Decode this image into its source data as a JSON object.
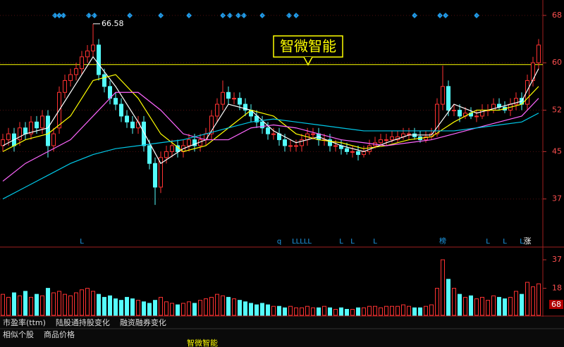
{
  "chart_data": {
    "type": "candlestick",
    "title": "智微智能",
    "max_label": "66.58",
    "up_color": "#ff3232",
    "down_color": "#54fcfc",
    "open": [
      46,
      47,
      48,
      47,
      49,
      48,
      50,
      49,
      51,
      46,
      49,
      55,
      57,
      58,
      59,
      61,
      62,
      63,
      58,
      56,
      54,
      53,
      51,
      50,
      49,
      50,
      46,
      43,
      39,
      44,
      45,
      46,
      45,
      46,
      47,
      46,
      47,
      48,
      51,
      53,
      55,
      54,
      54,
      53,
      52,
      51,
      50,
      49,
      48,
      48,
      47,
      46,
      46,
      46,
      47,
      48,
      48,
      47,
      47,
      46,
      46,
      45.5,
      45,
      45,
      44.5,
      45,
      46,
      46.5,
      47,
      47,
      47,
      47.5,
      48,
      48,
      47.5,
      47,
      47.5,
      48,
      53,
      56,
      52,
      52,
      51,
      51.5,
      51,
      51,
      52,
      52,
      53,
      52.5,
      52,
      53,
      54,
      53,
      57,
      60
    ],
    "high": [
      48,
      49,
      49,
      50,
      50,
      51,
      51,
      52,
      52,
      49,
      56,
      58,
      59,
      60,
      62,
      63,
      66.58,
      64,
      59,
      57,
      55,
      54,
      52,
      51,
      51,
      51,
      47,
      44,
      45,
      46,
      47,
      47,
      47,
      48,
      48,
      48,
      49,
      52,
      54,
      57,
      56,
      55,
      55,
      54,
      53,
      52,
      51,
      50,
      49,
      49,
      48,
      47,
      47,
      48,
      49,
      49,
      49,
      48,
      48,
      47,
      47,
      46.5,
      46,
      46,
      46,
      47,
      47.5,
      48,
      48,
      48.5,
      48.5,
      49,
      49,
      49,
      48.5,
      48.5,
      49,
      54,
      59.5,
      57,
      53,
      53,
      52.5,
      52.5,
      52,
      53,
      53,
      54,
      54,
      53.5,
      54,
      55,
      55,
      58,
      61,
      64
    ],
    "low": [
      45,
      46,
      45,
      46,
      47,
      47,
      48,
      48,
      44,
      45,
      48,
      54,
      56,
      57,
      58,
      60,
      61,
      57,
      55,
      53,
      52,
      50,
      49,
      48,
      48,
      45,
      42,
      36,
      38,
      43,
      44,
      44,
      44,
      45,
      45,
      45,
      46,
      47,
      50,
      52,
      53,
      53,
      52,
      51,
      50,
      49,
      48,
      47,
      47,
      46,
      45,
      45,
      45,
      45,
      46,
      47,
      46,
      46,
      45,
      45,
      44.5,
      44.5,
      44,
      43.5,
      44,
      44.5,
      45.5,
      46,
      46,
      46.5,
      46.5,
      47,
      47,
      47,
      46.5,
      46.5,
      47,
      47.5,
      52,
      51,
      51,
      50,
      50.5,
      50.5,
      50,
      50.5,
      51,
      51.5,
      52,
      51.5,
      51,
      52,
      52,
      52,
      56,
      59
    ],
    "close": [
      47,
      48,
      46,
      49,
      48,
      50,
      49,
      51,
      46,
      48,
      55,
      57,
      58,
      59,
      61,
      62,
      63,
      58,
      56,
      54,
      53,
      51,
      50,
      49,
      50,
      46,
      43,
      39,
      44,
      45,
      46,
      45,
      46,
      47,
      46,
      47,
      48,
      51,
      53,
      55,
      54,
      54,
      53,
      52,
      51,
      50,
      49,
      48,
      48,
      47,
      46,
      46,
      46,
      47,
      48,
      48,
      47,
      47,
      46,
      46,
      45.5,
      45,
      45,
      44.5,
      45,
      46,
      46.5,
      47,
      47,
      47.5,
      47.5,
      48,
      48,
      47.5,
      47,
      47.5,
      48,
      53,
      56,
      52,
      52,
      51,
      51.5,
      51,
      51,
      52,
      52,
      53,
      52.5,
      52,
      53,
      54,
      53,
      57,
      60,
      63
    ],
    "volume": [
      14,
      12,
      15,
      13,
      16,
      12,
      14,
      13,
      18,
      15,
      16,
      14,
      13,
      15,
      17,
      18,
      16,
      14,
      12,
      13,
      11,
      10,
      12,
      11,
      10,
      9,
      8,
      10,
      12,
      9,
      8,
      7,
      8,
      9,
      8,
      10,
      11,
      12,
      14,
      13,
      12,
      11,
      10,
      9,
      8,
      7,
      8,
      7,
      6,
      6,
      5,
      6,
      5,
      5,
      6,
      5,
      5,
      6,
      5,
      4,
      5,
      4,
      4,
      5,
      5,
      6,
      6,
      5,
      6,
      6,
      6,
      7,
      6,
      5,
      5,
      6,
      7,
      18,
      37,
      24,
      18,
      14,
      12,
      13,
      11,
      12,
      10,
      13,
      12,
      11,
      12,
      16,
      14,
      22,
      19,
      21
    ],
    "ma_x": [
      0,
      4,
      8,
      12,
      16,
      20,
      24,
      28,
      32,
      36,
      40,
      44,
      48,
      52,
      56,
      60,
      64,
      68,
      72,
      76,
      80,
      84,
      88,
      92,
      95
    ],
    "series": [
      {
        "color": "#ffffff",
        "values": [
          46,
          48,
          49,
          55,
          61,
          56,
          50,
          43,
          45.5,
          47,
          53,
          52,
          48.5,
          46.5,
          47.5,
          46,
          45,
          46.5,
          47.8,
          47.8,
          53,
          51.5,
          52.5,
          53.5,
          59
        ]
      },
      {
        "color": "#ffff00",
        "values": [
          45,
          47,
          48,
          51,
          57,
          58,
          54,
          48,
          45,
          46,
          49,
          52,
          51,
          48,
          47,
          46.5,
          45.5,
          46,
          47,
          47.5,
          50,
          52,
          52,
          53,
          56
        ]
      },
      {
        "color": "#ff66ff",
        "values": [
          40,
          43,
          45,
          47,
          51,
          55,
          55,
          52,
          48,
          47,
          47,
          49,
          49.5,
          49,
          48,
          47,
          46.5,
          46,
          46.5,
          47,
          48,
          49,
          50,
          51,
          54
        ]
      },
      {
        "color": "#00c8e8",
        "values": [
          37,
          39,
          41,
          43,
          44.5,
          45.5,
          46,
          46.5,
          47,
          48,
          49,
          50,
          50.5,
          50,
          49.5,
          49,
          48.5,
          48.5,
          48.5,
          48.5,
          48.5,
          49,
          49.5,
          50,
          51.5
        ]
      }
    ],
    "ref_line": 59.7,
    "ylim": [
      29,
      70.6
    ],
    "yticks": [
      68,
      60,
      52,
      45,
      37
    ],
    "vol_ylim": [
      0,
      45
    ],
    "vol_yticks": [
      37,
      18
    ],
    "vol_badge": "68",
    "event_markers": [
      {
        "index": 14,
        "label": "L"
      },
      {
        "index": 49,
        "label": "q"
      },
      {
        "index": 53,
        "label": "LLLLL"
      },
      {
        "index": 60,
        "label": "L"
      },
      {
        "index": 62,
        "label": "L"
      },
      {
        "index": 66,
        "label": "L"
      },
      {
        "index": 78,
        "label": "榜"
      },
      {
        "index": 86,
        "label": "L"
      },
      {
        "index": 89,
        "label": "L"
      },
      {
        "index": 92,
        "label": "L"
      },
      {
        "index": 93,
        "label": "涨"
      }
    ],
    "tabs": [
      "市盈率(ttm)",
      "陆股通持股变化",
      "融资融券变化"
    ],
    "tabs2": [
      "相似个股",
      "商品价格"
    ]
  }
}
